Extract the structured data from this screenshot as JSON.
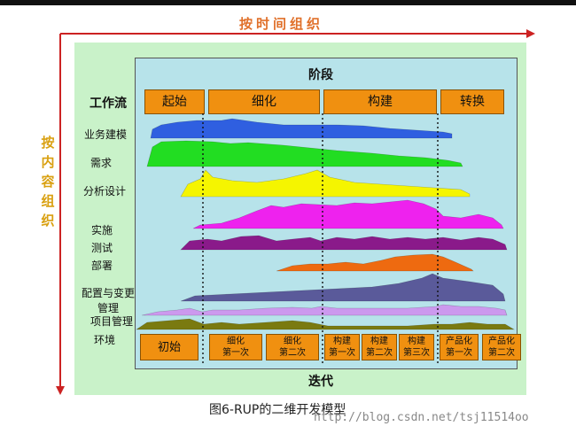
{
  "axes": {
    "top_label": "按时间组织",
    "left_label": [
      "按",
      "内",
      "容",
      "组",
      "织"
    ]
  },
  "header": {
    "phase_title": "阶段",
    "workflow_title": "工作流",
    "iteration_title": "迭代"
  },
  "phases": [
    "起始",
    "细化",
    "构建",
    "转换"
  ],
  "workflows": [
    {
      "label": "业务建模",
      "color": "#2f5fe0"
    },
    {
      "label": "需求",
      "color": "#22dd22"
    },
    {
      "label": "分析设计",
      "color": "#f5f500"
    },
    {
      "label": "实施",
      "color": "#ee22ee"
    },
    {
      "label": "测试",
      "color": "#8a1a8a"
    },
    {
      "label": "部署",
      "color": "#ee6a10"
    },
    {
      "label": "配置与变更管理",
      "color": "#5a5a9a"
    },
    {
      "label": "项目管理",
      "color": "#cc99ee"
    },
    {
      "label": "环境",
      "color": "#7a7a10"
    }
  ],
  "iterations": [
    {
      "l1": "初始",
      "l2": ""
    },
    {
      "l1": "细化",
      "l2": "第一次"
    },
    {
      "l1": "细化",
      "l2": "第二次"
    },
    {
      "l1": "构建",
      "l2": "第一次"
    },
    {
      "l1": "构建",
      "l2": "第二次"
    },
    {
      "l1": "构建",
      "l2": "第三次"
    },
    {
      "l1": "产品化",
      "l2": "第一次"
    },
    {
      "l1": "产品化",
      "l2": "第二次"
    }
  ],
  "caption": "图6-RUP的二维开发模型",
  "watermark": "http://blog.csdn.net/tsj11514oo"
}
